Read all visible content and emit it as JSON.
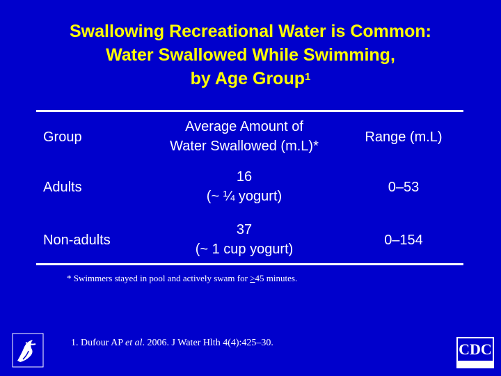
{
  "title": {
    "line1": "Swallowing Recreational Water is Common:",
    "line2": "Water Swallowed While Swimming,",
    "line3": "by Age Group",
    "footnote_mark": "1"
  },
  "table": {
    "headers": {
      "group": "Group",
      "amount_line1": "Average Amount of",
      "amount_line2": "Water Swallowed (m.L)*",
      "range": "Range (m.L)"
    },
    "rows": [
      {
        "group": "Adults",
        "amount": "16",
        "comparison": "(~ ¼ yogurt)",
        "range": "0–53"
      },
      {
        "group": "Non-adults",
        "amount": "37",
        "comparison": "(~ 1 cup yogurt)",
        "range": "0–154"
      }
    ]
  },
  "footnote": {
    "prefix": "* Swimmers stayed in pool and actively swam for ",
    "ge_symbol": ">",
    "suffix": "45 minutes."
  },
  "reference": {
    "prefix": "1. Dufour AP ",
    "italic": "et al",
    "suffix": ". 2006. J Water Hlth 4(4):425–30."
  },
  "logos": {
    "hhs": "hhs-seal-icon",
    "cdc_text": "CDC"
  },
  "colors": {
    "background": "#0000CC",
    "title": "#FFFF00",
    "text": "#FFFFFF"
  }
}
